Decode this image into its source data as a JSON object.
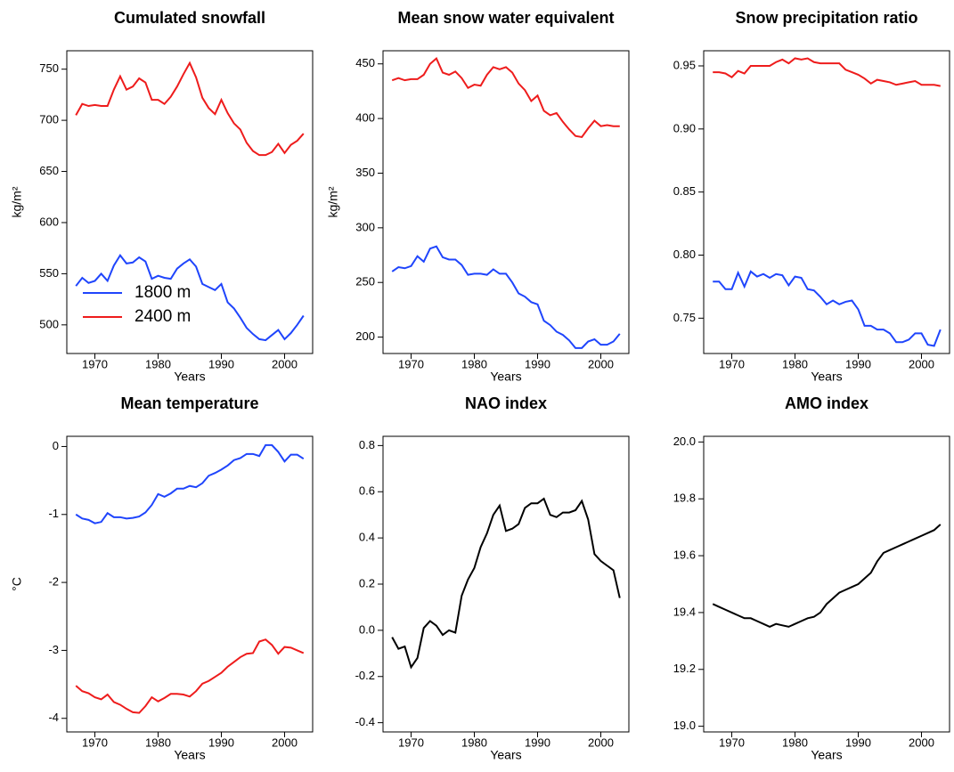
{
  "chart_data": [
    {
      "type": "line",
      "title": "Cumulated snowfall",
      "xlabel": "Years",
      "ylabel": "kg/m²",
      "x": [
        1967,
        1968,
        1969,
        1970,
        1971,
        1972,
        1973,
        1974,
        1975,
        1976,
        1977,
        1978,
        1979,
        1980,
        1981,
        1982,
        1983,
        1984,
        1985,
        1986,
        1987,
        1988,
        1989,
        1990,
        1991,
        1992,
        1993,
        1994,
        1995,
        1996,
        1997,
        1998,
        1999,
        2000,
        2001,
        2002,
        2003
      ],
      "xlim": [
        1965.56,
        2004.44
      ],
      "xticks": [
        1970,
        1980,
        1990,
        2000
      ],
      "ylim": [
        472,
        768
      ],
      "yticks": [
        500,
        550,
        600,
        650,
        700,
        750
      ],
      "legend": "bottomleft",
      "series": [
        {
          "name": "1800 m",
          "color": "#1f45fc",
          "values": [
            538,
            546,
            541,
            543,
            550,
            543,
            558,
            568,
            560,
            561,
            566,
            562,
            545,
            548,
            546,
            545,
            555,
            560,
            564,
            557,
            540,
            537,
            534,
            540,
            522,
            516,
            507,
            497,
            491,
            486,
            485,
            490,
            495,
            486,
            492,
            500,
            509
          ]
        },
        {
          "name": "2400 m",
          "color": "#ee1c1c",
          "values": [
            705,
            716,
            714,
            715,
            714,
            714,
            730,
            743,
            730,
            733,
            741,
            737,
            720,
            720,
            716,
            723,
            733,
            745,
            756,
            742,
            722,
            712,
            706,
            720,
            707,
            697,
            691,
            678,
            670,
            666,
            666,
            669,
            677,
            668,
            676,
            680,
            687
          ]
        }
      ]
    },
    {
      "type": "line",
      "title": "Mean snow water equivalent",
      "xlabel": "Years",
      "ylabel": "kg/m²",
      "x": [
        1967,
        1968,
        1969,
        1970,
        1971,
        1972,
        1973,
        1974,
        1975,
        1976,
        1977,
        1978,
        1979,
        1980,
        1981,
        1982,
        1983,
        1984,
        1985,
        1986,
        1987,
        1988,
        1989,
        1990,
        1991,
        1992,
        1993,
        1994,
        1995,
        1996,
        1997,
        1998,
        1999,
        2000,
        2001,
        2002,
        2003
      ],
      "xlim": [
        1965.56,
        2004.44
      ],
      "xticks": [
        1970,
        1980,
        1990,
        2000
      ],
      "ylim": [
        185,
        462
      ],
      "yticks": [
        200,
        250,
        300,
        350,
        400,
        450
      ],
      "series": [
        {
          "color": "#1f45fc",
          "values": [
            260,
            264,
            263,
            265,
            274,
            269,
            281,
            283,
            273,
            271,
            271,
            266,
            257,
            258,
            258,
            257,
            262,
            258,
            258,
            250,
            240,
            237,
            232,
            230,
            215,
            211,
            205,
            202,
            197,
            190,
            190,
            196,
            198,
            193,
            193,
            196,
            203
          ]
        },
        {
          "color": "#ee1c1c",
          "values": [
            435,
            437,
            435,
            436,
            436,
            440,
            450,
            455,
            442,
            440,
            443,
            437,
            428,
            431,
            430,
            440,
            447,
            445,
            447,
            442,
            432,
            426,
            416,
            421,
            407,
            403,
            405,
            397,
            390,
            384,
            383,
            391,
            398,
            393,
            394,
            393,
            393
          ]
        }
      ]
    },
    {
      "type": "line",
      "title": "Snow precipitation ratio",
      "xlabel": "Years",
      "x": [
        1967,
        1968,
        1969,
        1970,
        1971,
        1972,
        1973,
        1974,
        1975,
        1976,
        1977,
        1978,
        1979,
        1980,
        1981,
        1982,
        1983,
        1984,
        1985,
        1986,
        1987,
        1988,
        1989,
        1990,
        1991,
        1992,
        1993,
        1994,
        1995,
        1996,
        1997,
        1998,
        1999,
        2000,
        2001,
        2002,
        2003
      ],
      "xlim": [
        1965.56,
        2004.44
      ],
      "xticks": [
        1970,
        1980,
        1990,
        2000
      ],
      "ylim": [
        0.722,
        0.962
      ],
      "yticks": [
        0.75,
        {
          "value": 0.8,
          "label": "0.80"
        },
        0.85,
        {
          "value": 0.9,
          "label": "0.90"
        },
        0.95
      ],
      "series": [
        {
          "color": "#1f45fc",
          "values": [
            0.779,
            0.779,
            0.773,
            0.773,
            0.786,
            0.775,
            0.787,
            0.783,
            0.785,
            0.782,
            0.785,
            0.784,
            0.776,
            0.783,
            0.782,
            0.773,
            0.772,
            0.767,
            0.761,
            0.764,
            0.761,
            0.763,
            0.764,
            0.757,
            0.744,
            0.744,
            0.741,
            0.741,
            0.738,
            0.731,
            0.731,
            0.733,
            0.738,
            0.738,
            0.729,
            0.728,
            0.741
          ]
        },
        {
          "color": "#ee1c1c",
          "values": [
            0.945,
            0.945,
            0.944,
            0.941,
            0.946,
            0.944,
            0.95,
            0.95,
            0.95,
            0.95,
            0.953,
            0.955,
            0.952,
            0.956,
            0.955,
            0.956,
            0.953,
            0.952,
            0.952,
            0.952,
            0.952,
            0.947,
            0.945,
            0.943,
            0.94,
            0.936,
            0.939,
            0.938,
            0.937,
            0.935,
            0.936,
            0.937,
            0.938,
            0.935,
            0.935,
            0.935,
            0.934
          ]
        }
      ]
    },
    {
      "type": "line",
      "title": "Mean temperature",
      "xlabel": "Years",
      "ylabel": "°C",
      "x": [
        1967,
        1968,
        1969,
        1970,
        1971,
        1972,
        1973,
        1974,
        1975,
        1976,
        1977,
        1978,
        1979,
        1980,
        1981,
        1982,
        1983,
        1984,
        1985,
        1986,
        1987,
        1988,
        1989,
        1990,
        1991,
        1992,
        1993,
        1994,
        1995,
        1996,
        1997,
        1998,
        1999,
        2000,
        2001,
        2002,
        2003
      ],
      "xlim": [
        1965.56,
        2004.44
      ],
      "xticks": [
        1970,
        1980,
        1990,
        2000
      ],
      "ylim": [
        -4.2,
        0.15
      ],
      "yticks": [
        -4,
        -3,
        -2,
        -1,
        0
      ],
      "series": [
        {
          "color": "#1f45fc",
          "values": [
            -1.0,
            -1.06,
            -1.08,
            -1.13,
            -1.11,
            -0.98,
            -1.04,
            -1.04,
            -1.06,
            -1.05,
            -1.03,
            -0.97,
            -0.86,
            -0.7,
            -0.74,
            -0.69,
            -0.62,
            -0.62,
            -0.58,
            -0.6,
            -0.54,
            -0.43,
            -0.39,
            -0.34,
            -0.28,
            -0.2,
            -0.17,
            -0.11,
            -0.11,
            -0.14,
            0.02,
            0.02,
            -0.08,
            -0.22,
            -0.12,
            -0.12,
            -0.18
          ]
        },
        {
          "color": "#ee1c1c",
          "values": [
            -3.52,
            -3.6,
            -3.63,
            -3.69,
            -3.72,
            -3.65,
            -3.76,
            -3.8,
            -3.86,
            -3.91,
            -3.92,
            -3.82,
            -3.69,
            -3.75,
            -3.7,
            -3.64,
            -3.64,
            -3.65,
            -3.68,
            -3.6,
            -3.49,
            -3.45,
            -3.39,
            -3.33,
            -3.24,
            -3.17,
            -3.1,
            -3.05,
            -3.04,
            -2.87,
            -2.84,
            -2.92,
            -3.05,
            -2.95,
            -2.96,
            -3.0,
            -3.04
          ]
        }
      ]
    },
    {
      "type": "line",
      "title": "NAO index",
      "xlabel": "Years",
      "x": [
        1967,
        1968,
        1969,
        1970,
        1971,
        1972,
        1973,
        1974,
        1975,
        1976,
        1977,
        1978,
        1979,
        1980,
        1981,
        1982,
        1983,
        1984,
        1985,
        1986,
        1987,
        1988,
        1989,
        1990,
        1991,
        1992,
        1993,
        1994,
        1995,
        1996,
        1997,
        1998,
        1999,
        2000,
        2001,
        2002,
        2003
      ],
      "xlim": [
        1965.56,
        2004.44
      ],
      "xticks": [
        1970,
        1980,
        1990,
        2000
      ],
      "ylim": [
        -0.44,
        0.84
      ],
      "yticks": [
        -0.4,
        -0.2,
        {
          "value": 0,
          "label": "0.0"
        },
        0.2,
        0.4,
        0.6,
        0.8
      ],
      "series": [
        {
          "color": "#000000",
          "values": [
            -0.03,
            -0.08,
            -0.07,
            -0.16,
            -0.12,
            0.01,
            0.04,
            0.02,
            -0.02,
            0.0,
            -0.01,
            0.15,
            0.22,
            0.27,
            0.36,
            0.42,
            0.5,
            0.54,
            0.43,
            0.44,
            0.46,
            0.53,
            0.55,
            0.55,
            0.57,
            0.5,
            0.49,
            0.51,
            0.51,
            0.52,
            0.56,
            0.48,
            0.33,
            0.3,
            0.28,
            0.26,
            0.14
          ]
        }
      ]
    },
    {
      "type": "line",
      "title": "AMO index",
      "xlabel": "Years",
      "x": [
        1967,
        1968,
        1969,
        1970,
        1971,
        1972,
        1973,
        1974,
        1975,
        1976,
        1977,
        1978,
        1979,
        1980,
        1981,
        1982,
        1983,
        1984,
        1985,
        1986,
        1987,
        1988,
        1989,
        1990,
        1991,
        1992,
        1993,
        1994,
        1995,
        1996,
        1997,
        1998,
        1999,
        2000,
        2001,
        2002,
        2003
      ],
      "xlim": [
        1965.56,
        2004.44
      ],
      "xticks": [
        1970,
        1980,
        1990,
        2000
      ],
      "ylim": [
        18.98,
        20.02
      ],
      "yticks": [
        {
          "value": 19,
          "label": "19.0"
        },
        19.2,
        19.4,
        19.6,
        19.8,
        {
          "value": 20,
          "label": "20.0"
        }
      ],
      "series": [
        {
          "color": "#000000",
          "values": [
            19.43,
            19.42,
            19.41,
            19.4,
            19.39,
            19.38,
            19.38,
            19.37,
            19.36,
            19.35,
            19.36,
            19.355,
            19.35,
            19.36,
            19.37,
            19.38,
            19.385,
            19.4,
            19.43,
            19.45,
            19.47,
            19.48,
            19.49,
            19.5,
            19.52,
            19.54,
            19.58,
            19.61,
            19.62,
            19.63,
            19.64,
            19.65,
            19.66,
            19.67,
            19.68,
            19.69,
            19.71
          ]
        }
      ]
    }
  ]
}
